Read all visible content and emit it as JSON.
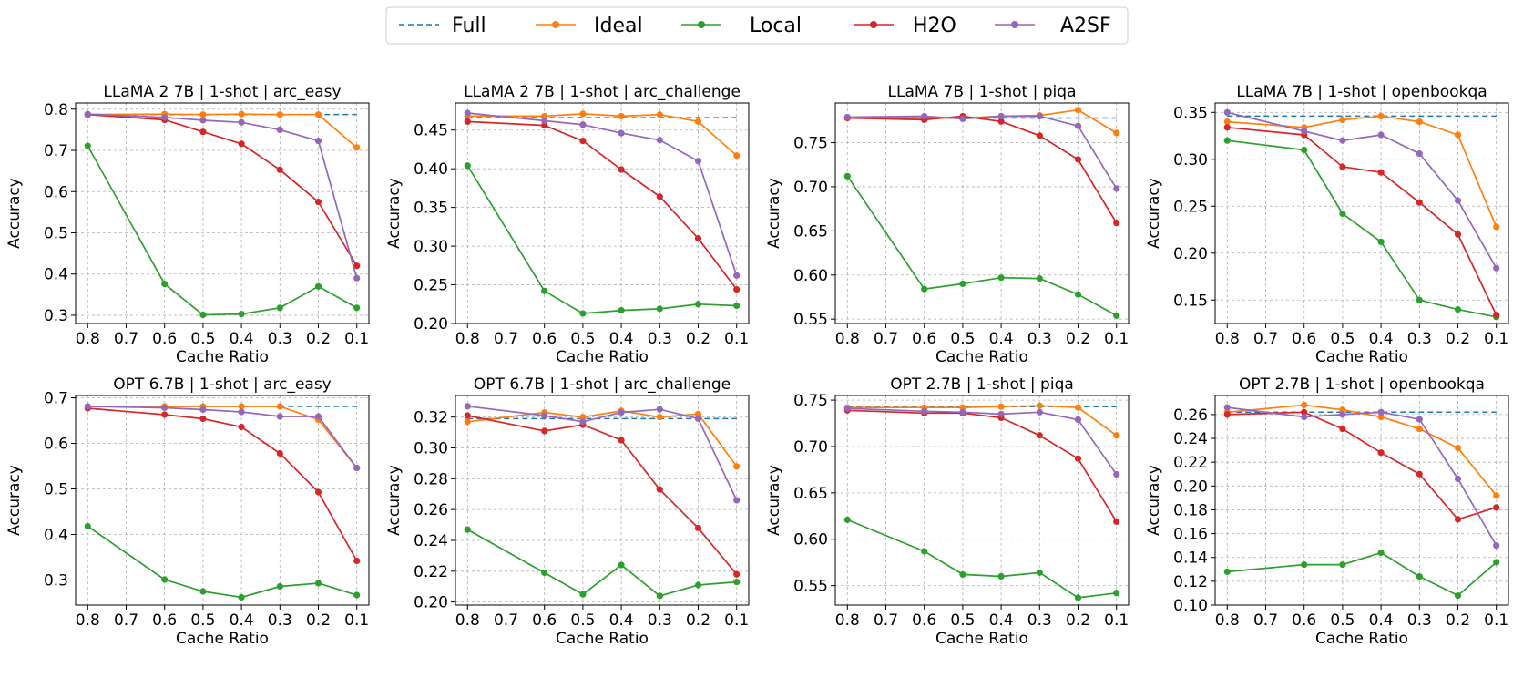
{
  "legend": [
    {
      "name": "Full",
      "color": "#1f77b4",
      "style": "dashed"
    },
    {
      "name": "Ideal",
      "color": "#ff7f0e",
      "style": "solid-marker"
    },
    {
      "name": "Local",
      "color": "#2ca02c",
      "style": "solid-marker"
    },
    {
      "name": "H2O",
      "color": "#d62728",
      "style": "solid-marker"
    },
    {
      "name": "A2SF",
      "color": "#9467bd",
      "style": "solid-marker"
    }
  ],
  "chart_data": [
    {
      "type": "line",
      "title": "LLaMA 2 7B | 1-shot | arc_easy",
      "xlabel": "Cache Ratio",
      "ylabel": "Accuracy",
      "x": [
        0.8,
        0.7,
        0.6,
        0.5,
        0.4,
        0.3,
        0.2,
        0.1
      ],
      "ylim": [
        0.28,
        0.815
      ],
      "yticks": [
        "0.3",
        "0.4",
        "0.5",
        "0.6",
        "0.7",
        "0.8"
      ],
      "grid": true,
      "full": 0.787,
      "series": [
        {
          "name": "Ideal",
          "x": [
            0.8,
            0.6,
            0.5,
            0.4,
            0.3,
            0.2,
            0.1
          ],
          "values": [
            0.787,
            0.788,
            0.787,
            0.788,
            0.787,
            0.787,
            0.707
          ]
        },
        {
          "name": "Local",
          "x": [
            0.8,
            0.6,
            0.5,
            0.4,
            0.3,
            0.2,
            0.1
          ],
          "values": [
            0.711,
            0.376,
            0.301,
            0.303,
            0.318,
            0.37,
            0.318
          ]
        },
        {
          "name": "H2O",
          "x": [
            0.8,
            0.6,
            0.5,
            0.4,
            0.3,
            0.2,
            0.1
          ],
          "values": [
            0.787,
            0.774,
            0.745,
            0.716,
            0.653,
            0.575,
            0.42
          ]
        },
        {
          "name": "A2SF",
          "x": [
            0.8,
            0.6,
            0.5,
            0.4,
            0.3,
            0.2,
            0.1
          ],
          "values": [
            0.788,
            0.78,
            0.773,
            0.768,
            0.75,
            0.723,
            0.39
          ]
        }
      ]
    },
    {
      "type": "line",
      "title": "LLaMA 2 7B | 1-shot | arc_challenge",
      "xlabel": "Cache Ratio",
      "ylabel": "Accuracy",
      "x": [
        0.8,
        0.7,
        0.6,
        0.5,
        0.4,
        0.3,
        0.2,
        0.1
      ],
      "ylim": [
        0.2,
        0.485
      ],
      "yticks": [
        "0.20",
        "0.25",
        "0.30",
        "0.35",
        "0.40",
        "0.45"
      ],
      "grid": true,
      "full": 0.466,
      "series": [
        {
          "name": "Ideal",
          "x": [
            0.8,
            0.6,
            0.5,
            0.4,
            0.3,
            0.2,
            0.1
          ],
          "values": [
            0.468,
            0.468,
            0.471,
            0.468,
            0.47,
            0.461,
            0.417
          ]
        },
        {
          "name": "Local",
          "x": [
            0.8,
            0.6,
            0.5,
            0.4,
            0.3,
            0.2,
            0.1
          ],
          "values": [
            0.404,
            0.242,
            0.213,
            0.217,
            0.219,
            0.225,
            0.223
          ]
        },
        {
          "name": "H2O",
          "x": [
            0.8,
            0.6,
            0.5,
            0.4,
            0.3,
            0.2,
            0.1
          ],
          "values": [
            0.461,
            0.456,
            0.436,
            0.399,
            0.364,
            0.31,
            0.244
          ]
        },
        {
          "name": "A2SF",
          "x": [
            0.8,
            0.6,
            0.5,
            0.4,
            0.3,
            0.2,
            0.1
          ],
          "values": [
            0.472,
            0.462,
            0.457,
            0.446,
            0.437,
            0.41,
            0.262
          ]
        }
      ]
    },
    {
      "type": "line",
      "title": "LLaMA 7B | 1-shot | piqa",
      "xlabel": "Cache Ratio",
      "ylabel": "Accuracy",
      "x": [
        0.8,
        0.7,
        0.6,
        0.5,
        0.4,
        0.3,
        0.2,
        0.1
      ],
      "ylim": [
        0.545,
        0.795
      ],
      "yticks": [
        "0.55",
        "0.60",
        "0.65",
        "0.70",
        "0.75"
      ],
      "grid": true,
      "full": 0.778,
      "series": [
        {
          "name": "Ideal",
          "x": [
            0.8,
            0.6,
            0.5,
            0.4,
            0.3,
            0.2,
            0.1
          ],
          "values": [
            0.778,
            0.778,
            0.778,
            0.78,
            0.781,
            0.787,
            0.761
          ]
        },
        {
          "name": "Local",
          "x": [
            0.8,
            0.6,
            0.5,
            0.4,
            0.3,
            0.2,
            0.1
          ],
          "values": [
            0.712,
            0.584,
            0.59,
            0.597,
            0.596,
            0.578,
            0.554
          ]
        },
        {
          "name": "H2O",
          "x": [
            0.8,
            0.6,
            0.5,
            0.4,
            0.3,
            0.2,
            0.1
          ],
          "values": [
            0.778,
            0.776,
            0.78,
            0.774,
            0.758,
            0.731,
            0.659
          ]
        },
        {
          "name": "A2SF",
          "x": [
            0.8,
            0.6,
            0.5,
            0.4,
            0.3,
            0.2,
            0.1
          ],
          "values": [
            0.779,
            0.78,
            0.777,
            0.78,
            0.78,
            0.769,
            0.698
          ]
        }
      ]
    },
    {
      "type": "line",
      "title": "LLaMA 7B | 1-shot | openbookqa",
      "xlabel": "Cache Ratio",
      "ylabel": "Accuracy",
      "x": [
        0.8,
        0.7,
        0.6,
        0.5,
        0.4,
        0.3,
        0.2,
        0.1
      ],
      "ylim": [
        0.125,
        0.36
      ],
      "yticks": [
        "0.15",
        "0.20",
        "0.25",
        "0.30",
        "0.35"
      ],
      "grid": true,
      "full": 0.346,
      "series": [
        {
          "name": "Ideal",
          "x": [
            0.8,
            0.6,
            0.5,
            0.4,
            0.3,
            0.2,
            0.1
          ],
          "values": [
            0.34,
            0.334,
            0.342,
            0.346,
            0.34,
            0.326,
            0.228
          ]
        },
        {
          "name": "Local",
          "x": [
            0.8,
            0.6,
            0.5,
            0.4,
            0.3,
            0.2,
            0.1
          ],
          "values": [
            0.32,
            0.31,
            0.242,
            0.212,
            0.15,
            0.14,
            0.132
          ]
        },
        {
          "name": "H2O",
          "x": [
            0.8,
            0.6,
            0.5,
            0.4,
            0.3,
            0.2,
            0.1
          ],
          "values": [
            0.334,
            0.326,
            0.292,
            0.286,
            0.254,
            0.22,
            0.134
          ]
        },
        {
          "name": "A2SF",
          "x": [
            0.8,
            0.6,
            0.5,
            0.4,
            0.3,
            0.2,
            0.1
          ],
          "values": [
            0.35,
            0.33,
            0.32,
            0.326,
            0.306,
            0.256,
            0.184
          ]
        }
      ]
    },
    {
      "type": "line",
      "title": "OPT 6.7B | 1-shot | arc_easy",
      "xlabel": "Cache Ratio",
      "ylabel": "Accuracy",
      "x": [
        0.8,
        0.7,
        0.6,
        0.5,
        0.4,
        0.3,
        0.2,
        0.1
      ],
      "ylim": [
        0.245,
        0.705
      ],
      "yticks": [
        "0.3",
        "0.4",
        "0.5",
        "0.6",
        "0.7"
      ],
      "grid": true,
      "full": 0.681,
      "series": [
        {
          "name": "Ideal",
          "x": [
            0.8,
            0.6,
            0.5,
            0.4,
            0.3,
            0.2,
            0.1
          ],
          "values": [
            0.681,
            0.681,
            0.681,
            0.681,
            0.681,
            0.652,
            0.546
          ]
        },
        {
          "name": "Local",
          "x": [
            0.8,
            0.6,
            0.5,
            0.4,
            0.3,
            0.2,
            0.1
          ],
          "values": [
            0.418,
            0.301,
            0.275,
            0.262,
            0.286,
            0.293,
            0.267
          ]
        },
        {
          "name": "H2O",
          "x": [
            0.8,
            0.6,
            0.5,
            0.4,
            0.3,
            0.2,
            0.1
          ],
          "values": [
            0.677,
            0.663,
            0.654,
            0.636,
            0.578,
            0.493,
            0.342
          ]
        },
        {
          "name": "A2SF",
          "x": [
            0.8,
            0.6,
            0.5,
            0.4,
            0.3,
            0.2,
            0.1
          ],
          "values": [
            0.681,
            0.678,
            0.674,
            0.669,
            0.659,
            0.659,
            0.546
          ]
        }
      ]
    },
    {
      "type": "line",
      "title": "OPT 6.7B | 1-shot | arc_challenge",
      "xlabel": "Cache Ratio",
      "ylabel": "Accuracy",
      "x": [
        0.8,
        0.7,
        0.6,
        0.5,
        0.4,
        0.3,
        0.2,
        0.1
      ],
      "ylim": [
        0.198,
        0.334
      ],
      "yticks": [
        "0.20",
        "0.22",
        "0.24",
        "0.26",
        "0.28",
        "0.30",
        "0.32"
      ],
      "grid": true,
      "full": 0.319,
      "series": [
        {
          "name": "Ideal",
          "x": [
            0.8,
            0.6,
            0.5,
            0.4,
            0.3,
            0.2,
            0.1
          ],
          "values": [
            0.317,
            0.323,
            0.32,
            0.324,
            0.32,
            0.322,
            0.288
          ]
        },
        {
          "name": "Local",
          "x": [
            0.8,
            0.6,
            0.5,
            0.4,
            0.3,
            0.2,
            0.1
          ],
          "values": [
            0.247,
            0.219,
            0.205,
            0.224,
            0.204,
            0.211,
            0.213
          ]
        },
        {
          "name": "H2O",
          "x": [
            0.8,
            0.6,
            0.5,
            0.4,
            0.3,
            0.2,
            0.1
          ],
          "values": [
            0.321,
            0.311,
            0.315,
            0.305,
            0.273,
            0.248,
            0.218
          ]
        },
        {
          "name": "A2SF",
          "x": [
            0.8,
            0.6,
            0.5,
            0.4,
            0.3,
            0.2,
            0.1
          ],
          "values": [
            0.327,
            0.321,
            0.317,
            0.323,
            0.325,
            0.319,
            0.266
          ]
        }
      ]
    },
    {
      "type": "line",
      "title": "OPT 2.7B | 1-shot | piqa",
      "xlabel": "Cache Ratio",
      "ylabel": "Accuracy",
      "x": [
        0.8,
        0.7,
        0.6,
        0.5,
        0.4,
        0.3,
        0.2,
        0.1
      ],
      "ylim": [
        0.529,
        0.755
      ],
      "yticks": [
        "0.55",
        "0.60",
        "0.65",
        "0.70",
        "0.75"
      ],
      "grid": true,
      "full": 0.743,
      "series": [
        {
          "name": "Ideal",
          "x": [
            0.8,
            0.6,
            0.5,
            0.4,
            0.3,
            0.2,
            0.1
          ],
          "values": [
            0.742,
            0.742,
            0.742,
            0.743,
            0.744,
            0.742,
            0.712
          ]
        },
        {
          "name": "Local",
          "x": [
            0.8,
            0.6,
            0.5,
            0.4,
            0.3,
            0.2,
            0.1
          ],
          "values": [
            0.621,
            0.587,
            0.562,
            0.56,
            0.564,
            0.537,
            0.542
          ]
        },
        {
          "name": "H2O",
          "x": [
            0.8,
            0.6,
            0.5,
            0.4,
            0.3,
            0.2,
            0.1
          ],
          "values": [
            0.739,
            0.736,
            0.736,
            0.731,
            0.712,
            0.687,
            0.619
          ]
        },
        {
          "name": "A2SF",
          "x": [
            0.8,
            0.6,
            0.5,
            0.4,
            0.3,
            0.2,
            0.1
          ],
          "values": [
            0.741,
            0.738,
            0.737,
            0.735,
            0.737,
            0.729,
            0.67
          ]
        }
      ]
    },
    {
      "type": "line",
      "title": "OPT 2.7B | 1-shot | openbookqa",
      "xlabel": "Cache Ratio",
      "ylabel": "Accuracy",
      "x": [
        0.8,
        0.7,
        0.6,
        0.5,
        0.4,
        0.3,
        0.2,
        0.1
      ],
      "ylim": [
        0.1,
        0.276
      ],
      "yticks": [
        "0.10",
        "0.12",
        "0.14",
        "0.16",
        "0.18",
        "0.20",
        "0.22",
        "0.24",
        "0.26"
      ],
      "grid": true,
      "full": 0.262,
      "series": [
        {
          "name": "Ideal",
          "x": [
            0.8,
            0.6,
            0.5,
            0.4,
            0.3,
            0.2,
            0.1
          ],
          "values": [
            0.262,
            0.268,
            0.264,
            0.258,
            0.248,
            0.232,
            0.192
          ]
        },
        {
          "name": "Local",
          "x": [
            0.8,
            0.6,
            0.5,
            0.4,
            0.3,
            0.2,
            0.1
          ],
          "values": [
            0.128,
            0.134,
            0.134,
            0.144,
            0.124,
            0.108,
            0.136
          ]
        },
        {
          "name": "H2O",
          "x": [
            0.8,
            0.6,
            0.5,
            0.4,
            0.3,
            0.2,
            0.1
          ],
          "values": [
            0.26,
            0.262,
            0.248,
            0.228,
            0.21,
            0.172,
            0.182
          ]
        },
        {
          "name": "A2SF",
          "x": [
            0.8,
            0.6,
            0.5,
            0.4,
            0.3,
            0.2,
            0.1
          ],
          "values": [
            0.266,
            0.258,
            0.26,
            0.262,
            0.256,
            0.206,
            0.15
          ]
        }
      ]
    }
  ]
}
